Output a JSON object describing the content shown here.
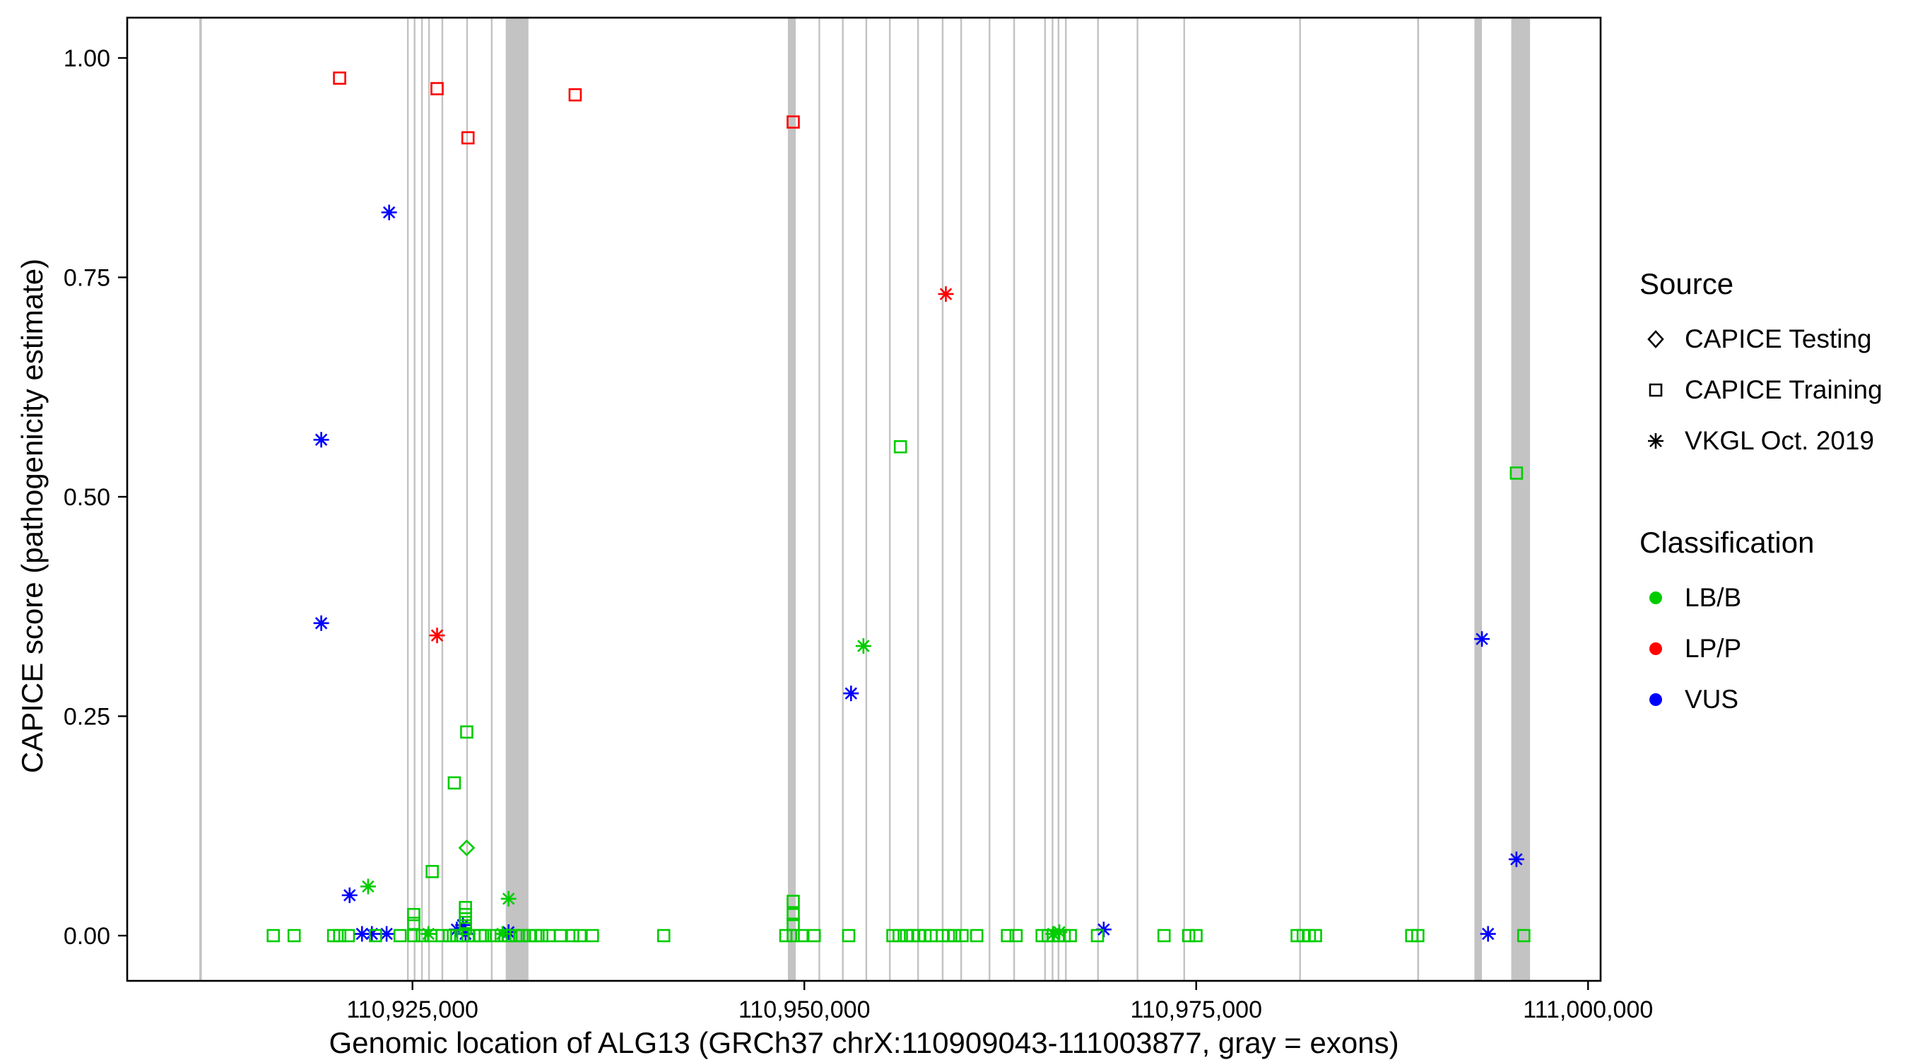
{
  "colors": {
    "lbb": "#00CC00",
    "lpp": "#FF0000",
    "vus": "#0000FF",
    "exon": "#C3C3C3",
    "axis": "#000000",
    "panel_bg": "#FFFFFF"
  },
  "legend": {
    "source_title": "Source",
    "source_items": [
      {
        "label": "CAPICE Testing",
        "marker": "diamond"
      },
      {
        "label": "CAPICE Training",
        "marker": "square"
      },
      {
        "label": "VKGL Oct. 2019",
        "marker": "asterisk"
      }
    ],
    "class_title": "Classification",
    "class_items": [
      {
        "label": "LB/B",
        "color_key": "lbb"
      },
      {
        "label": "LP/P",
        "color_key": "lpp"
      },
      {
        "label": "VUS",
        "color_key": "vus"
      }
    ]
  },
  "chart_data": {
    "type": "scatter",
    "title": "",
    "xlabel": "Genomic location of ALG13 (GRCh37 chrX:110909043-111003877, gray = exons)",
    "ylabel": "CAPICE score (pathogenicity estimate)",
    "xlim": [
      110906800,
      111000800
    ],
    "ylim": [
      0,
      1
    ],
    "grid": "off",
    "legend_position": "right",
    "x_ticks": [
      {
        "value": 110925000,
        "label": "110,925,000"
      },
      {
        "value": 110950000,
        "label": "110,950,000"
      },
      {
        "value": 110975000,
        "label": "110,975,000"
      },
      {
        "value": 111000000,
        "label": "111,000,000"
      }
    ],
    "y_ticks": [
      {
        "value": 0.0,
        "label": "0.00"
      },
      {
        "value": 0.25,
        "label": "0.25"
      },
      {
        "value": 0.5,
        "label": "0.50"
      },
      {
        "value": 0.75,
        "label": "0.75"
      },
      {
        "value": 1.0,
        "label": "1.00"
      }
    ],
    "exons": [
      [
        110911400,
        110911560
      ],
      [
        110924650,
        110924760
      ],
      [
        110925080,
        110925190
      ],
      [
        110925550,
        110925660
      ],
      [
        110926000,
        110926110
      ],
      [
        110926850,
        110926960
      ],
      [
        110928430,
        110928540
      ],
      [
        110930000,
        110930110
      ],
      [
        110930950,
        110932400
      ],
      [
        110948950,
        110949450
      ],
      [
        110950900,
        110951010
      ],
      [
        110952400,
        110952510
      ],
      [
        110953900,
        110954010
      ],
      [
        110955400,
        110955510
      ],
      [
        110957200,
        110957310
      ],
      [
        110958770,
        110958880
      ],
      [
        110959950,
        110960060
      ],
      [
        110961760,
        110961870
      ],
      [
        110963330,
        110963440
      ],
      [
        110965300,
        110965410
      ],
      [
        110965780,
        110965890
      ],
      [
        110966160,
        110966270
      ],
      [
        110966630,
        110966740
      ],
      [
        110968680,
        110968790
      ],
      [
        110971200,
        110971310
      ],
      [
        110974180,
        110974290
      ],
      [
        110981570,
        110981680
      ],
      [
        110989100,
        110989220
      ],
      [
        110992750,
        110993230
      ],
      [
        110995100,
        110996300
      ]
    ],
    "points": [
      [
        110920350,
        0.977,
        "LP/P",
        "training"
      ],
      [
        110926570,
        0.965,
        "LP/P",
        "training"
      ],
      [
        110928540,
        0.909,
        "LP/P",
        "training"
      ],
      [
        110935380,
        0.958,
        "LP/P",
        "training"
      ],
      [
        110949290,
        0.927,
        "LP/P",
        "training"
      ],
      [
        110926570,
        0.342,
        "LP/P",
        "vkgl"
      ],
      [
        110959030,
        0.731,
        "LP/P",
        "vkgl"
      ],
      [
        110923510,
        0.824,
        "VUS",
        "vkgl"
      ],
      [
        110919180,
        0.565,
        "VUS",
        "vkgl"
      ],
      [
        110919180,
        0.356,
        "VUS",
        "vkgl"
      ],
      [
        110920990,
        0.046,
        "VUS",
        "vkgl"
      ],
      [
        110952980,
        0.276,
        "VUS",
        "vkgl"
      ],
      [
        110993230,
        0.338,
        "VUS",
        "vkgl"
      ],
      [
        110995430,
        0.087,
        "VUS",
        "vkgl"
      ],
      [
        110921780,
        0.002,
        "VUS",
        "vkgl"
      ],
      [
        110922410,
        0.002,
        "VUS",
        "vkgl"
      ],
      [
        110923350,
        0.002,
        "VUS",
        "vkgl"
      ],
      [
        110927830,
        0.007,
        "VUS",
        "vkgl"
      ],
      [
        110928380,
        0.002,
        "VUS",
        "vkgl"
      ],
      [
        110928220,
        0.012,
        "VUS",
        "vkgl"
      ],
      [
        110931130,
        0.004,
        "VUS",
        "vkgl"
      ],
      [
        110969100,
        0.007,
        "VUS",
        "vkgl"
      ],
      [
        110993620,
        0.002,
        "VUS",
        "vkgl"
      ],
      [
        110922170,
        0.056,
        "LB/B",
        "vkgl"
      ],
      [
        110953770,
        0.33,
        "LB/B",
        "vkgl"
      ],
      [
        110931130,
        0.042,
        "LB/B",
        "vkgl"
      ],
      [
        110926020,
        0.002,
        "LB/B",
        "vkgl"
      ],
      [
        110930740,
        0.002,
        "LB/B",
        "vkgl"
      ],
      [
        110966270,
        0.004,
        "LB/B",
        "vkgl"
      ],
      [
        110965870,
        0.002,
        "LB/B",
        "vkgl"
      ],
      [
        110928460,
        0.1,
        "LB/B",
        "testing"
      ],
      [
        110928460,
        0.232,
        "LB/B",
        "training"
      ],
      [
        110927670,
        0.174,
        "LB/B",
        "training"
      ],
      [
        110926260,
        0.073,
        "LB/B",
        "training"
      ],
      [
        110956130,
        0.557,
        "LB/B",
        "training"
      ],
      [
        110995430,
        0.527,
        "LB/B",
        "training"
      ],
      [
        110949290,
        0.039,
        "LB/B",
        "training"
      ],
      [
        110949290,
        0.024,
        "LB/B",
        "training"
      ],
      [
        110949290,
        0.013,
        "LB/B",
        "training"
      ],
      [
        110925080,
        0.024,
        "LB/B",
        "training"
      ],
      [
        110925080,
        0.014,
        "LB/B",
        "training"
      ],
      [
        110928380,
        0.032,
        "LB/B",
        "training"
      ],
      [
        110928380,
        0.024,
        "LB/B",
        "training"
      ],
      [
        110928380,
        0.015,
        "LB/B",
        "training"
      ],
      [
        110928380,
        0.008,
        "LB/B",
        "training"
      ],
      [
        110916120,
        0,
        "LB/B",
        "training"
      ],
      [
        110917450,
        0,
        "LB/B",
        "training"
      ],
      [
        110919970,
        0,
        "LB/B",
        "training"
      ],
      [
        110920360,
        0,
        "LB/B",
        "training"
      ],
      [
        110920910,
        0,
        "LB/B",
        "training"
      ],
      [
        110922640,
        0,
        "LB/B",
        "training"
      ],
      [
        110924210,
        0,
        "LB/B",
        "training"
      ],
      [
        110925080,
        0,
        "LB/B",
        "training"
      ],
      [
        110925630,
        0,
        "LB/B",
        "training"
      ],
      [
        110926180,
        0,
        "LB/B",
        "training"
      ],
      [
        110926890,
        0,
        "LB/B",
        "training"
      ],
      [
        110927360,
        0,
        "LB/B",
        "training"
      ],
      [
        110927830,
        0,
        "LB/B",
        "training"
      ],
      [
        110928220,
        0,
        "LB/B",
        "training"
      ],
      [
        110928540,
        0,
        "LB/B",
        "training"
      ],
      [
        110928930,
        0,
        "LB/B",
        "training"
      ],
      [
        110929320,
        0,
        "LB/B",
        "training"
      ],
      [
        110929640,
        0,
        "LB/B",
        "training"
      ],
      [
        110930190,
        0,
        "LB/B",
        "training"
      ],
      [
        110930660,
        0,
        "LB/B",
        "training"
      ],
      [
        110931130,
        0,
        "LB/B",
        "training"
      ],
      [
        110931600,
        0,
        "LB/B",
        "training"
      ],
      [
        110932000,
        0,
        "LB/B",
        "training"
      ],
      [
        110932470,
        0,
        "LB/B",
        "training"
      ],
      [
        110932860,
        0,
        "LB/B",
        "training"
      ],
      [
        110933250,
        0,
        "LB/B",
        "training"
      ],
      [
        110933730,
        0,
        "LB/B",
        "training"
      ],
      [
        110934430,
        0,
        "LB/B",
        "training"
      ],
      [
        110935220,
        0,
        "LB/B",
        "training"
      ],
      [
        110935690,
        0,
        "LB/B",
        "training"
      ],
      [
        110936480,
        0,
        "LB/B",
        "training"
      ],
      [
        110941030,
        0,
        "LB/B",
        "training"
      ],
      [
        110948820,
        0,
        "LB/B",
        "training"
      ],
      [
        110949290,
        0,
        "LB/B",
        "training"
      ],
      [
        110949840,
        0,
        "LB/B",
        "training"
      ],
      [
        110950630,
        0,
        "LB/B",
        "training"
      ],
      [
        110952830,
        0,
        "LB/B",
        "training"
      ],
      [
        110955650,
        0,
        "LB/B",
        "training"
      ],
      [
        110956050,
        0,
        "LB/B",
        "training"
      ],
      [
        110956520,
        0,
        "LB/B",
        "training"
      ],
      [
        110956910,
        0,
        "LB/B",
        "training"
      ],
      [
        110957310,
        0,
        "LB/B",
        "training"
      ],
      [
        110957700,
        0,
        "LB/B",
        "training"
      ],
      [
        110958090,
        0,
        "LB/B",
        "training"
      ],
      [
        110958800,
        0,
        "LB/B",
        "training"
      ],
      [
        110959190,
        0,
        "LB/B",
        "training"
      ],
      [
        110959580,
        0,
        "LB/B",
        "training"
      ],
      [
        110960060,
        0,
        "LB/B",
        "training"
      ],
      [
        110961000,
        0,
        "LB/B",
        "training"
      ],
      [
        110962960,
        0,
        "LB/B",
        "training"
      ],
      [
        110963510,
        0,
        "LB/B",
        "training"
      ],
      [
        110965170,
        0,
        "LB/B",
        "training"
      ],
      [
        110965560,
        0,
        "LB/B",
        "training"
      ],
      [
        110965870,
        0,
        "LB/B",
        "training"
      ],
      [
        110966190,
        0,
        "LB/B",
        "training"
      ],
      [
        110966580,
        0,
        "LB/B",
        "training"
      ],
      [
        110966970,
        0,
        "LB/B",
        "training"
      ],
      [
        110968700,
        0,
        "LB/B",
        "training"
      ],
      [
        110972950,
        0,
        "LB/B",
        "training"
      ],
      [
        110974520,
        0,
        "LB/B",
        "training"
      ],
      [
        110974990,
        0,
        "LB/B",
        "training"
      ],
      [
        110981440,
        0,
        "LB/B",
        "training"
      ],
      [
        110981830,
        0,
        "LB/B",
        "training"
      ],
      [
        110982220,
        0,
        "LB/B",
        "training"
      ],
      [
        110982610,
        0,
        "LB/B",
        "training"
      ],
      [
        110988750,
        0,
        "LB/B",
        "training"
      ],
      [
        110989140,
        0,
        "LB/B",
        "training"
      ],
      [
        110995900,
        0,
        "LB/B",
        "training"
      ]
    ]
  }
}
